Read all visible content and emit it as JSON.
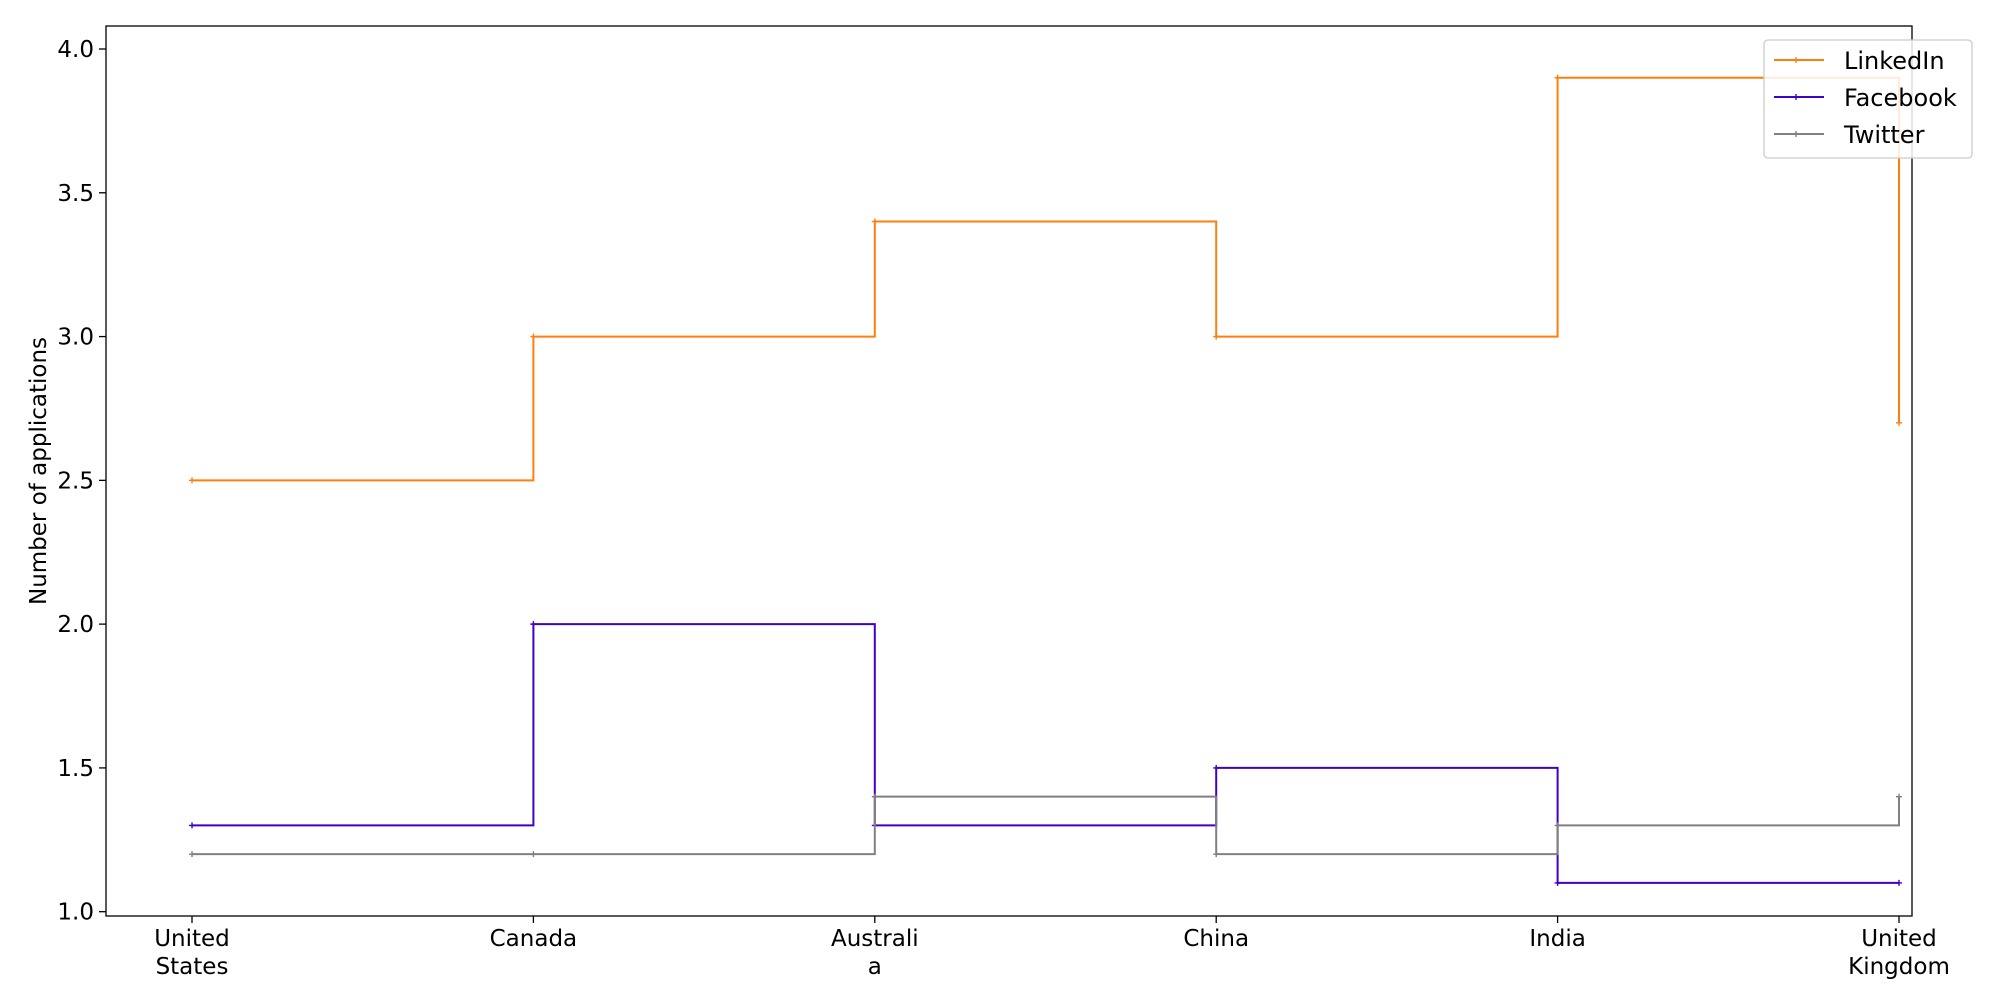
{
  "chart_data": {
    "type": "line",
    "step": "post",
    "categories": [
      [
        "United",
        "States"
      ],
      [
        "Canada"
      ],
      [
        "Australi",
        "a"
      ],
      [
        "China"
      ],
      [
        "India"
      ],
      [
        "United",
        "Kingdom"
      ]
    ],
    "ylabel": "Number of applications",
    "ylim": [
      0.985,
      4.08
    ],
    "yticks": [
      "1.0",
      "1.5",
      "2.0",
      "2.5",
      "3.0",
      "3.5",
      "4.0"
    ],
    "legend_position": "upper-right",
    "grid": false,
    "series": [
      {
        "name": "LinkedIn",
        "color": "#ff7f0e",
        "values": [
          2.5,
          3.0,
          3.4,
          3.0,
          3.9,
          2.7
        ]
      },
      {
        "name": "Facebook",
        "color": "#3f00c8",
        "values": [
          1.3,
          2.0,
          1.3,
          1.5,
          1.1,
          1.1
        ]
      },
      {
        "name": "Twitter",
        "color": "#808080",
        "values": [
          1.2,
          1.2,
          1.4,
          1.2,
          1.3,
          1.4
        ]
      }
    ]
  }
}
